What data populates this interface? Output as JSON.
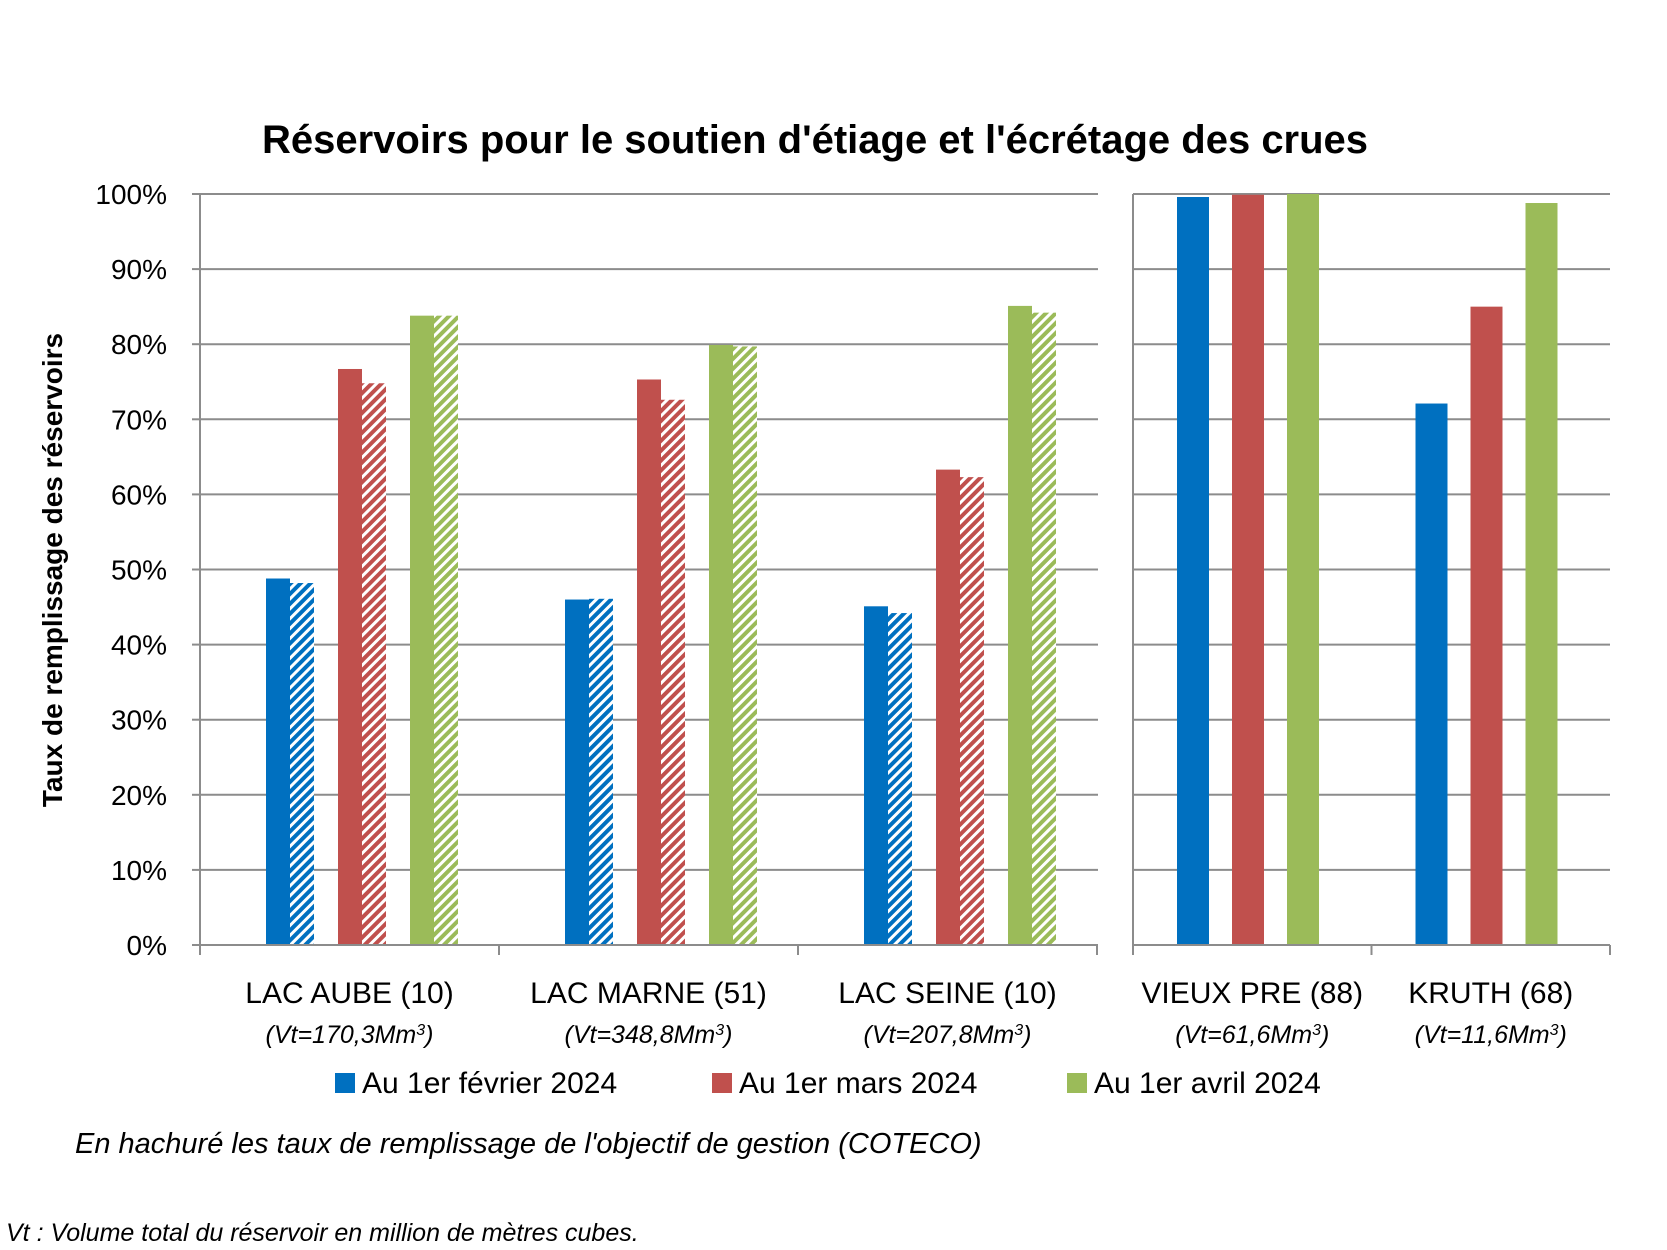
{
  "chart_data": {
    "type": "bar",
    "title": "Réservoirs pour le soutien d'étiage et l'écrétage des crues",
    "ylabel": "Taux de remplissage des réservoirs",
    "ylim": [
      0,
      100
    ],
    "y_ticks": [
      "0%",
      "10%",
      "20%",
      "30%",
      "40%",
      "50%",
      "60%",
      "70%",
      "80%",
      "90%",
      "100%"
    ],
    "grid": true,
    "legend_position": "bottom",
    "panels": [
      {
        "categories": [
          {
            "name": "LAC AUBE (10)",
            "volume": "(Vt=170,3Mm",
            "volume_sup": "3",
            "volume_end": ")"
          },
          {
            "name": "LAC MARNE (51)",
            "volume": "(Vt=348,8Mm",
            "volume_sup": "3",
            "volume_end": ")"
          },
          {
            "name": "LAC SEINE (10)",
            "volume": "(Vt=207,8Mm",
            "volume_sup": "3",
            "volume_end": ")"
          }
        ],
        "series": [
          {
            "name": "Au 1er février 2024",
            "color": "#0070C0",
            "values": [
              48.8,
              46.0,
              45.1
            ],
            "objective": [
              48.2,
              46.1,
              44.2
            ]
          },
          {
            "name": "Au 1er mars 2024",
            "color": "#C0504D",
            "values": [
              76.7,
              75.3,
              63.3
            ],
            "objective": [
              74.8,
              72.6,
              62.3
            ]
          },
          {
            "name": "Au 1er avril 2024",
            "color": "#9BBB59",
            "values": [
              83.8,
              79.9,
              85.1
            ],
            "objective": [
              83.8,
              79.7,
              84.2
            ]
          }
        ]
      },
      {
        "categories": [
          {
            "name": "VIEUX PRE (88)",
            "volume": "(Vt=61,6Mm",
            "volume_sup": "3",
            "volume_end": ")"
          },
          {
            "name": "KRUTH (68)",
            "volume": "(Vt=11,6Mm",
            "volume_sup": "3",
            "volume_end": ")"
          }
        ],
        "series": [
          {
            "name": "Au 1er février 2024",
            "color": "#0070C0",
            "values": [
              99.6,
              72.1
            ]
          },
          {
            "name": "Au 1er mars 2024",
            "color": "#C0504D",
            "values": [
              99.9,
              85.0
            ]
          },
          {
            "name": "Au 1er avril 2024",
            "color": "#9BBB59",
            "values": [
              100.0,
              98.8
            ]
          }
        ]
      }
    ]
  },
  "legend": [
    {
      "label": "Au 1er février 2024",
      "color": "#0070C0"
    },
    {
      "label": "Au 1er mars 2024",
      "color": "#C0504D"
    },
    {
      "label": "Au 1er avril 2024",
      "color": "#9BBB59"
    }
  ],
  "note": "En hachuré les taux de remplissage de l'objectif de gestion (COTECO)",
  "footnote": "Vt : Volume total du réservoir en million de mètres cubes."
}
